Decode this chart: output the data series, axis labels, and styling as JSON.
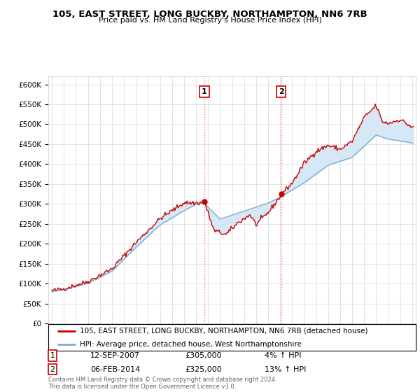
{
  "title": "105, EAST STREET, LONG BUCKBY, NORTHAMPTON, NN6 7RB",
  "subtitle": "Price paid vs. HM Land Registry's House Price Index (HPI)",
  "ylabel_ticks": [
    "£0",
    "£50K",
    "£100K",
    "£150K",
    "£200K",
    "£250K",
    "£300K",
    "£350K",
    "£400K",
    "£450K",
    "£500K",
    "£550K",
    "£600K"
  ],
  "ytick_values": [
    0,
    50000,
    100000,
    150000,
    200000,
    250000,
    300000,
    350000,
    400000,
    450000,
    500000,
    550000,
    600000
  ],
  "ylim": [
    0,
    620000
  ],
  "xlim_start": 1994.7,
  "xlim_end": 2025.3,
  "sale1_x": 2007.7,
  "sale1_y": 305000,
  "sale1_label": "1",
  "sale2_x": 2014.1,
  "sale2_y": 325000,
  "sale2_label": "2",
  "red_line_color": "#cc0000",
  "blue_line_color": "#7ab0d4",
  "blue_fill_color": "#d6e8f5",
  "marker_box_color": "#cc0000",
  "legend_line1": "105, EAST STREET, LONG BUCKBY, NORTHAMPTON, NN6 7RB (detached house)",
  "legend_line2": "HPI: Average price, detached house, West Northamptonshire",
  "annotation1_date": "12-SEP-2007",
  "annotation1_price": "£305,000",
  "annotation1_hpi": "4% ↑ HPI",
  "annotation2_date": "06-FEB-2014",
  "annotation2_price": "£325,000",
  "annotation2_hpi": "13% ↑ HPI",
  "footer": "Contains HM Land Registry data © Crown copyright and database right 2024.\nThis data is licensed under the Open Government Licence v3.0.",
  "bg_color": "#ffffff",
  "plot_bg_color": "#ffffff"
}
